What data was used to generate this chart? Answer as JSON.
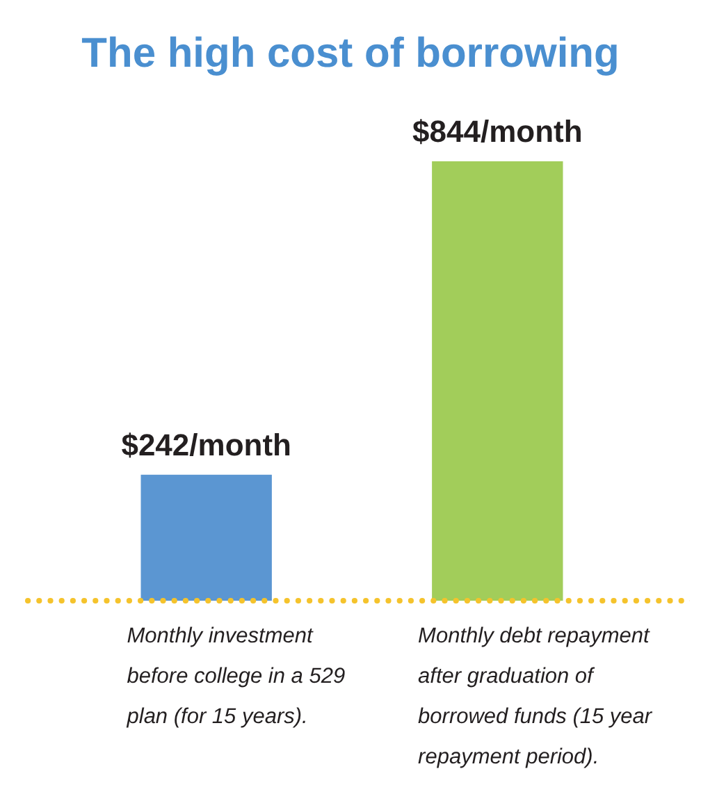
{
  "chart_data": {
    "type": "bar",
    "title": "The high cost of borrowing",
    "categories": [
      "Monthly investment before college in a 529 plan (for 15 years).",
      "Monthly debt repayment after graduation of borrowed funds (15 year repayment period)."
    ],
    "values": [
      242,
      844
    ],
    "colors": [
      "#5b96d2",
      "#a2cd5a"
    ],
    "value_labels": [
      "$242/month",
      "$844/month"
    ]
  }
}
